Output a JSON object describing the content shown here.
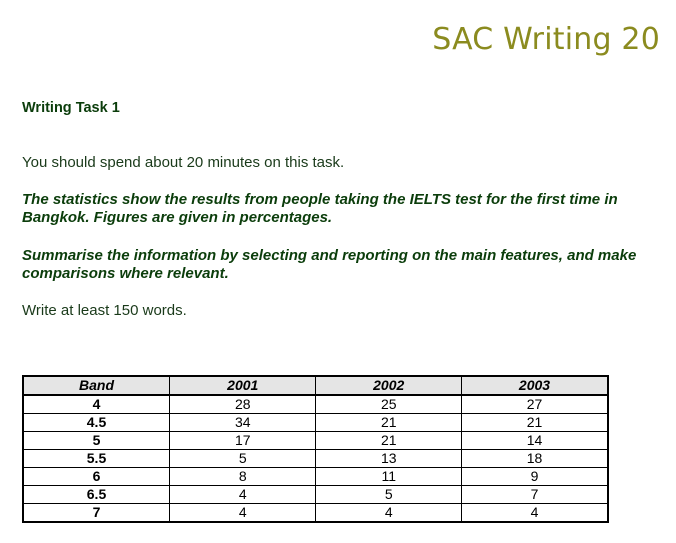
{
  "header": {
    "brand": "SAC Writing 20"
  },
  "task": {
    "title": "Writing Task 1",
    "time_note": "You should spend about 20 minutes on this task.",
    "prompt": "The statistics show the results from people taking the IELTS test for the first time in Bangkok. Figures are given in percentages.",
    "instruction": "Summarise the information by selecting and reporting on the main features, and make comparisons where relevant.",
    "word_count": "Write at least 150 words."
  },
  "chart_data": {
    "type": "table",
    "columns": [
      "Band",
      "2001",
      "2002",
      "2003"
    ],
    "rows": [
      [
        "4",
        "28",
        "25",
        "27"
      ],
      [
        "4.5",
        "34",
        "21",
        "21"
      ],
      [
        "5",
        "17",
        "21",
        "14"
      ],
      [
        "5.5",
        "5",
        "13",
        "18"
      ],
      [
        "6",
        "8",
        "11",
        "9"
      ],
      [
        "6.5",
        "4",
        "5",
        "7"
      ],
      [
        "7",
        "4",
        "4",
        "4"
      ]
    ]
  }
}
